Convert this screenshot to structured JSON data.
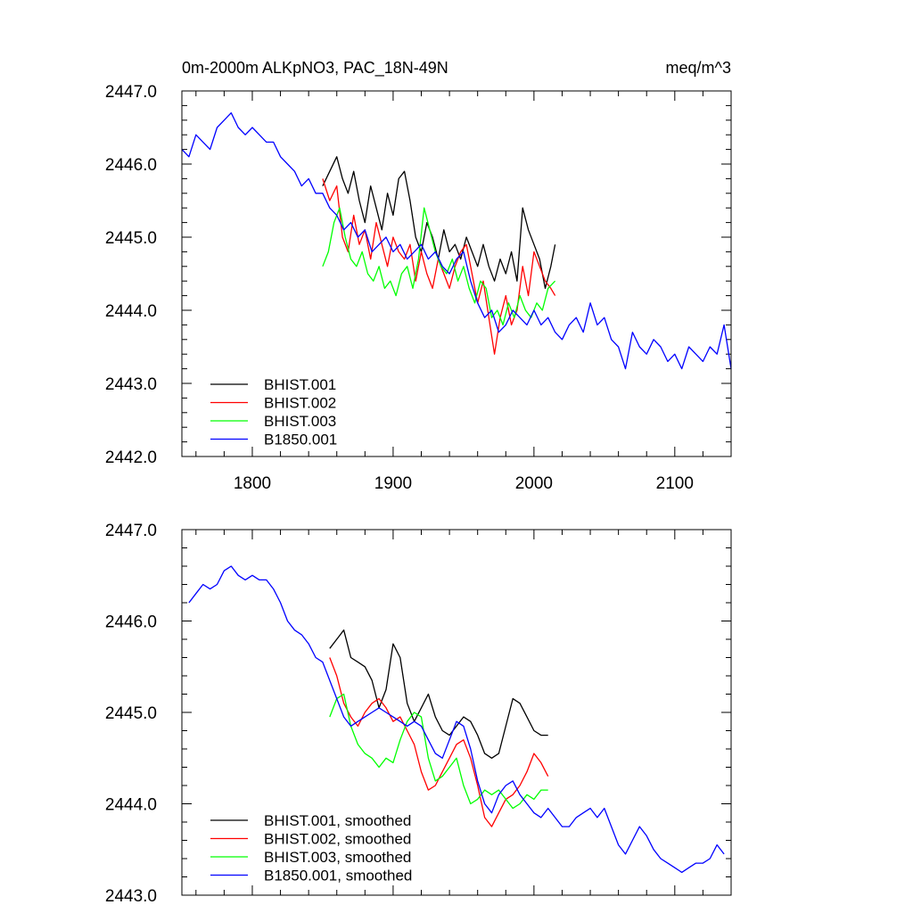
{
  "chart_data": [
    {
      "type": "line",
      "title": "0m-2000m ALKpNO3, PAC_18N-49N",
      "units": "meq/m^3",
      "xlim": [
        1750,
        2140
      ],
      "ylim": [
        2442.0,
        2447.0
      ],
      "x_major_ticks": [
        1800,
        1900,
        2000,
        2100
      ],
      "x_tick_labels": [
        "1800",
        "1900",
        "2000",
        "2100"
      ],
      "x_minor_step": 20,
      "y_major_ticks": [
        2442.0,
        2443.0,
        2444.0,
        2445.0,
        2446.0,
        2447.0
      ],
      "y_tick_labels": [
        "2442.0",
        "2443.0",
        "2444.0",
        "2445.0",
        "2446.0",
        "2447.0"
      ],
      "y_minor_step": 0.2,
      "legend_position": "bottom-left",
      "series": [
        {
          "name": "BHIST.001",
          "color": "#000000",
          "x": [
            1850,
            1855,
            1860,
            1864,
            1868,
            1872,
            1876,
            1880,
            1884,
            1888,
            1892,
            1896,
            1900,
            1904,
            1908,
            1912,
            1916,
            1920,
            1924,
            1928,
            1932,
            1936,
            1940,
            1944,
            1948,
            1952,
            1956,
            1960,
            1964,
            1968,
            1972,
            1976,
            1980,
            1984,
            1988,
            1992,
            1996,
            2000,
            2004,
            2008,
            2012,
            2015
          ],
          "y": [
            2445.7,
            2445.9,
            2446.1,
            2445.8,
            2445.6,
            2445.9,
            2445.5,
            2445.2,
            2445.7,
            2445.4,
            2445.1,
            2445.6,
            2445.3,
            2445.8,
            2445.9,
            2445.5,
            2445.0,
            2444.8,
            2445.2,
            2445.0,
            2444.7,
            2445.1,
            2444.8,
            2444.9,
            2444.7,
            2445.0,
            2444.8,
            2444.6,
            2444.9,
            2444.6,
            2444.4,
            2444.7,
            2444.5,
            2444.8,
            2444.4,
            2445.4,
            2445.1,
            2444.9,
            2444.7,
            2444.3,
            2444.6,
            2444.9
          ]
        },
        {
          "name": "BHIST.002",
          "color": "#ff0000",
          "x": [
            1850,
            1855,
            1860,
            1864,
            1868,
            1872,
            1876,
            1880,
            1884,
            1888,
            1892,
            1896,
            1900,
            1904,
            1908,
            1912,
            1916,
            1920,
            1924,
            1928,
            1932,
            1936,
            1940,
            1944,
            1948,
            1952,
            1956,
            1960,
            1964,
            1968,
            1972,
            1976,
            1980,
            1984,
            1988,
            1992,
            1996,
            2000,
            2004,
            2008,
            2012,
            2015
          ],
          "y": [
            2445.8,
            2445.5,
            2445.7,
            2445.0,
            2444.8,
            2445.3,
            2444.9,
            2445.1,
            2444.7,
            2445.2,
            2444.9,
            2444.6,
            2445.0,
            2444.8,
            2444.7,
            2444.9,
            2444.4,
            2444.8,
            2444.5,
            2444.3,
            2444.7,
            2444.5,
            2444.3,
            2444.6,
            2444.8,
            2444.9,
            2444.5,
            2444.1,
            2444.4,
            2443.9,
            2443.4,
            2443.9,
            2444.2,
            2443.8,
            2444.0,
            2444.6,
            2444.2,
            2444.8,
            2444.6,
            2444.4,
            2444.3,
            2444.2
          ]
        },
        {
          "name": "BHIST.003",
          "color": "#00ff00",
          "x": [
            1850,
            1854,
            1858,
            1862,
            1866,
            1870,
            1874,
            1878,
            1882,
            1886,
            1890,
            1894,
            1898,
            1902,
            1906,
            1910,
            1914,
            1918,
            1922,
            1926,
            1930,
            1934,
            1938,
            1942,
            1946,
            1950,
            1954,
            1958,
            1962,
            1966,
            1970,
            1974,
            1978,
            1982,
            1986,
            1990,
            1994,
            1998,
            2002,
            2006,
            2010,
            2015
          ],
          "y": [
            2444.6,
            2444.8,
            2445.2,
            2445.4,
            2445.0,
            2444.7,
            2444.6,
            2444.8,
            2444.5,
            2444.4,
            2444.6,
            2444.3,
            2444.4,
            2444.2,
            2444.5,
            2444.6,
            2444.3,
            2444.7,
            2445.4,
            2445.1,
            2444.8,
            2444.6,
            2444.5,
            2444.7,
            2444.4,
            2444.6,
            2444.3,
            2444.1,
            2444.4,
            2444.3,
            2443.9,
            2444.0,
            2443.8,
            2444.1,
            2443.9,
            2444.2,
            2444.0,
            2443.9,
            2444.1,
            2444.0,
            2444.3,
            2444.4
          ]
        },
        {
          "name": "B1850.001",
          "color": "#0000ff",
          "x": [
            1750,
            1755,
            1760,
            1765,
            1770,
            1775,
            1780,
            1785,
            1790,
            1795,
            1800,
            1805,
            1810,
            1815,
            1820,
            1825,
            1830,
            1835,
            1840,
            1845,
            1850,
            1855,
            1860,
            1865,
            1870,
            1875,
            1880,
            1885,
            1890,
            1895,
            1900,
            1905,
            1910,
            1915,
            1920,
            1925,
            1930,
            1935,
            1940,
            1945,
            1950,
            1955,
            1960,
            1965,
            1970,
            1975,
            1980,
            1985,
            1990,
            1995,
            2000,
            2005,
            2010,
            2015,
            2020,
            2025,
            2030,
            2035,
            2040,
            2045,
            2050,
            2055,
            2060,
            2065,
            2070,
            2075,
            2080,
            2085,
            2090,
            2095,
            2100,
            2105,
            2110,
            2115,
            2120,
            2125,
            2130,
            2135,
            2140
          ],
          "y": [
            2446.2,
            2446.1,
            2446.4,
            2446.3,
            2446.2,
            2446.5,
            2446.6,
            2446.7,
            2446.5,
            2446.4,
            2446.5,
            2446.4,
            2446.3,
            2446.3,
            2446.1,
            2446.0,
            2445.9,
            2445.7,
            2445.8,
            2445.6,
            2445.6,
            2445.4,
            2445.3,
            2445.1,
            2445.2,
            2445.0,
            2445.1,
            2444.8,
            2444.9,
            2445.0,
            2444.8,
            2444.9,
            2444.7,
            2444.8,
            2444.9,
            2444.7,
            2444.8,
            2444.6,
            2444.5,
            2444.7,
            2444.8,
            2444.4,
            2444.1,
            2443.9,
            2444.0,
            2443.7,
            2443.8,
            2444.0,
            2443.9,
            2443.8,
            2444.0,
            2443.8,
            2443.9,
            2443.7,
            2443.6,
            2443.8,
            2443.9,
            2443.7,
            2444.1,
            2443.8,
            2443.9,
            2443.6,
            2443.5,
            2443.2,
            2443.7,
            2443.5,
            2443.4,
            2443.6,
            2443.5,
            2443.3,
            2443.4,
            2443.2,
            2443.5,
            2443.4,
            2443.3,
            2443.5,
            2443.4,
            2443.8,
            2443.2
          ]
        }
      ]
    },
    {
      "type": "line",
      "title": "",
      "xlim": [
        1750,
        2140
      ],
      "ylim": [
        2443.0,
        2447.0
      ],
      "x_major_ticks": [
        1800,
        1900,
        2000,
        2100
      ],
      "x_tick_labels": [],
      "x_minor_step": 20,
      "y_major_ticks": [
        2443.0,
        2444.0,
        2445.0,
        2446.0,
        2447.0
      ],
      "y_tick_labels": [
        "2443.0",
        "2444.0",
        "2445.0",
        "2446.0",
        "2447.0"
      ],
      "y_minor_step": 0.2,
      "legend_position": "bottom-left",
      "series": [
        {
          "name": "BHIST.001, smoothed",
          "color": "#000000",
          "x": [
            1855,
            1860,
            1865,
            1870,
            1875,
            1880,
            1885,
            1890,
            1895,
            1900,
            1905,
            1910,
            1915,
            1920,
            1925,
            1930,
            1935,
            1940,
            1945,
            1950,
            1955,
            1960,
            1965,
            1970,
            1975,
            1980,
            1985,
            1990,
            1995,
            2000,
            2005,
            2010
          ],
          "y": [
            2445.7,
            2445.8,
            2445.9,
            2445.6,
            2445.55,
            2445.5,
            2445.35,
            2445.05,
            2445.25,
            2445.75,
            2445.6,
            2445.1,
            2444.9,
            2445.05,
            2445.2,
            2444.95,
            2444.8,
            2444.75,
            2444.85,
            2444.95,
            2444.9,
            2444.75,
            2444.55,
            2444.5,
            2444.55,
            2444.85,
            2445.15,
            2445.1,
            2444.95,
            2444.8,
            2444.75,
            2444.75
          ]
        },
        {
          "name": "BHIST.002, smoothed",
          "color": "#ff0000",
          "x": [
            1855,
            1860,
            1865,
            1870,
            1875,
            1880,
            1885,
            1890,
            1895,
            1900,
            1905,
            1910,
            1915,
            1920,
            1925,
            1930,
            1935,
            1940,
            1945,
            1950,
            1955,
            1960,
            1965,
            1970,
            1975,
            1980,
            1985,
            1990,
            1995,
            2000,
            2005,
            2010
          ],
          "y": [
            2445.6,
            2445.4,
            2445.1,
            2444.95,
            2444.85,
            2445.0,
            2445.1,
            2445.15,
            2445.05,
            2444.9,
            2444.95,
            2444.8,
            2444.65,
            2444.35,
            2444.15,
            2444.2,
            2444.35,
            2444.5,
            2444.65,
            2444.7,
            2444.5,
            2444.2,
            2443.85,
            2443.75,
            2443.9,
            2444.05,
            2444.1,
            2444.2,
            2444.35,
            2444.55,
            2444.45,
            2444.3
          ]
        },
        {
          "name": "BHIST.003, smoothed",
          "color": "#00ff00",
          "x": [
            1855,
            1860,
            1865,
            1870,
            1875,
            1880,
            1885,
            1890,
            1895,
            1900,
            1905,
            1910,
            1915,
            1920,
            1925,
            1930,
            1935,
            1940,
            1945,
            1950,
            1955,
            1960,
            1965,
            1970,
            1975,
            1980,
            1985,
            1990,
            1995,
            2000,
            2005,
            2010
          ],
          "y": [
            2444.95,
            2445.15,
            2445.2,
            2444.85,
            2444.65,
            2444.55,
            2444.5,
            2444.4,
            2444.5,
            2444.45,
            2444.7,
            2444.9,
            2445.0,
            2444.95,
            2444.5,
            2444.25,
            2444.3,
            2444.4,
            2444.5,
            2444.2,
            2444.0,
            2444.05,
            2444.15,
            2444.1,
            2444.15,
            2444.05,
            2443.95,
            2444.0,
            2444.1,
            2444.05,
            2444.15,
            2444.15
          ]
        },
        {
          "name": "B1850.001, smoothed",
          "color": "#0000ff",
          "x": [
            1755,
            1760,
            1765,
            1770,
            1775,
            1780,
            1785,
            1790,
            1795,
            1800,
            1805,
            1810,
            1815,
            1820,
            1825,
            1830,
            1835,
            1840,
            1845,
            1850,
            1855,
            1860,
            1865,
            1870,
            1875,
            1880,
            1885,
            1890,
            1895,
            1900,
            1905,
            1910,
            1915,
            1920,
            1925,
            1930,
            1935,
            1940,
            1945,
            1950,
            1955,
            1960,
            1965,
            1970,
            1975,
            1980,
            1985,
            1990,
            1995,
            2000,
            2005,
            2010,
            2015,
            2020,
            2025,
            2030,
            2035,
            2040,
            2045,
            2050,
            2055,
            2060,
            2065,
            2070,
            2075,
            2080,
            2085,
            2090,
            2095,
            2100,
            2105,
            2110,
            2115,
            2120,
            2125,
            2130,
            2135
          ],
          "y": [
            2446.2,
            2446.3,
            2446.4,
            2446.35,
            2446.4,
            2446.55,
            2446.6,
            2446.5,
            2446.45,
            2446.5,
            2446.45,
            2446.45,
            2446.35,
            2446.2,
            2446.0,
            2445.9,
            2445.85,
            2445.75,
            2445.6,
            2445.55,
            2445.35,
            2445.15,
            2444.95,
            2444.85,
            2444.9,
            2444.95,
            2445.0,
            2445.05,
            2445.0,
            2444.95,
            2444.9,
            2444.85,
            2444.9,
            2444.85,
            2444.7,
            2444.55,
            2444.5,
            2444.7,
            2444.9,
            2444.85,
            2444.6,
            2444.25,
            2444.0,
            2443.9,
            2444.1,
            2444.2,
            2444.25,
            2444.1,
            2444.0,
            2443.9,
            2443.85,
            2443.95,
            2443.85,
            2443.75,
            2443.75,
            2443.85,
            2443.9,
            2443.95,
            2443.85,
            2443.95,
            2443.75,
            2443.55,
            2443.45,
            2443.6,
            2443.75,
            2443.65,
            2443.5,
            2443.4,
            2443.35,
            2443.3,
            2443.25,
            2443.3,
            2443.35,
            2443.35,
            2443.4,
            2443.55,
            2443.45
          ]
        }
      ]
    }
  ]
}
